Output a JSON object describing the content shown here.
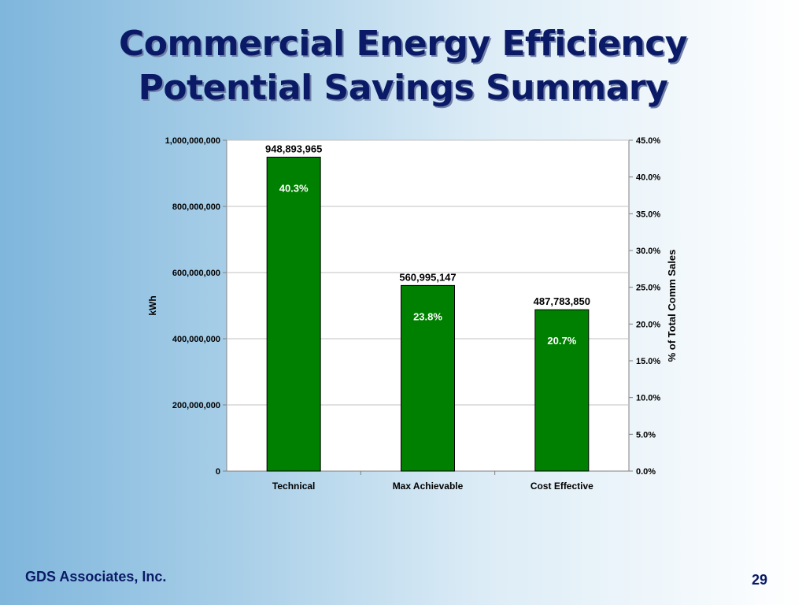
{
  "slide": {
    "title_line1": "Commercial Energy Efficiency",
    "title_line2": "Potential Savings Summary",
    "footer_org": "GDS Associates, Inc.",
    "page_number": "29"
  },
  "chart_data": {
    "type": "bar",
    "categories": [
      "Technical",
      "Max Achievable",
      "Cost Effective"
    ],
    "values": [
      948893965,
      560995147,
      487783850
    ],
    "value_labels": [
      "948,893,965",
      "560,995,147",
      "487,783,850"
    ],
    "percent_labels": [
      "40.3%",
      "23.8%",
      "20.7%"
    ],
    "percent_values": [
      40.3,
      23.8,
      20.7
    ],
    "ylabel": "kWh",
    "y2label": "% of Total Comm Sales",
    "ylim": [
      0,
      1000000000
    ],
    "y2lim": [
      0,
      45
    ],
    "y_ticks": [
      "0",
      "200,000,000",
      "400,000,000",
      "600,000,000",
      "800,000,000",
      "1,000,000,000"
    ],
    "y_tick_values": [
      0,
      200000000,
      400000000,
      600000000,
      800000000,
      1000000000
    ],
    "y2_ticks": [
      "0.0%",
      "5.0%",
      "10.0%",
      "15.0%",
      "20.0%",
      "25.0%",
      "30.0%",
      "35.0%",
      "40.0%",
      "45.0%"
    ],
    "y2_tick_values": [
      0,
      5,
      10,
      15,
      20,
      25,
      30,
      35,
      40,
      45
    ],
    "bar_color": "#008000",
    "plot_background": "#ffffff",
    "grid": true,
    "legend": "none"
  }
}
